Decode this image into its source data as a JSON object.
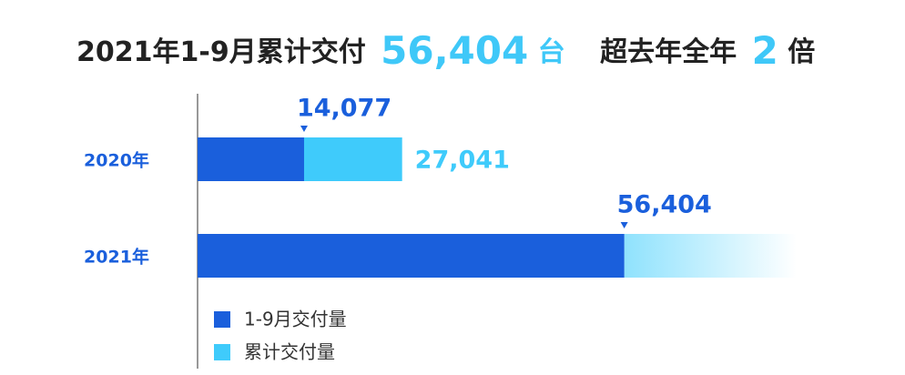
{
  "chart_data": {
    "type": "bar",
    "title_parts": [
      "2021年1-9月累计交付",
      "56,404",
      "台",
      "超去年全年",
      "2",
      "倍"
    ],
    "categories": [
      "2020年",
      "2021年"
    ],
    "series": [
      {
        "name": "1-9月交付量",
        "color": "#1a5fdc",
        "values": [
          14077,
          56404
        ],
        "value_labels": [
          "14,077",
          "56,404"
        ]
      },
      {
        "name": "累计交付量",
        "color": "#3fcbfb",
        "values": [
          27041,
          null
        ],
        "value_labels": [
          "27,041",
          null
        ]
      }
    ],
    "xlim": [
      0,
      68000
    ]
  }
}
